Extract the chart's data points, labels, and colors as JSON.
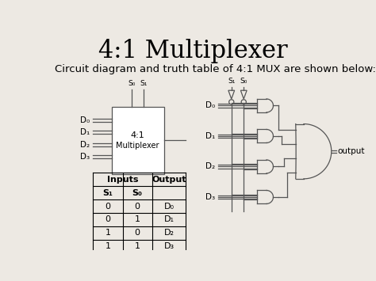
{
  "title": "4:1 Multiplexer",
  "subtitle": "Circuit diagram and truth table of 4:1 MUX are shown below:",
  "bg_color": "#ede9e3",
  "title_fontsize": 22,
  "subtitle_fontsize": 9.5,
  "d_labels": [
    "D₀",
    "D₁",
    "D₂",
    "D₃"
  ],
  "s_labels_left": [
    "S₀",
    "S₁"
  ],
  "s_labels_right": [
    "S₁",
    "S₀"
  ],
  "table_rows": [
    [
      "0",
      "0",
      "D₀"
    ],
    [
      "0",
      "1",
      "D₁"
    ],
    [
      "1",
      "0",
      "D₂"
    ],
    [
      "1",
      "1",
      "D₃"
    ]
  ]
}
